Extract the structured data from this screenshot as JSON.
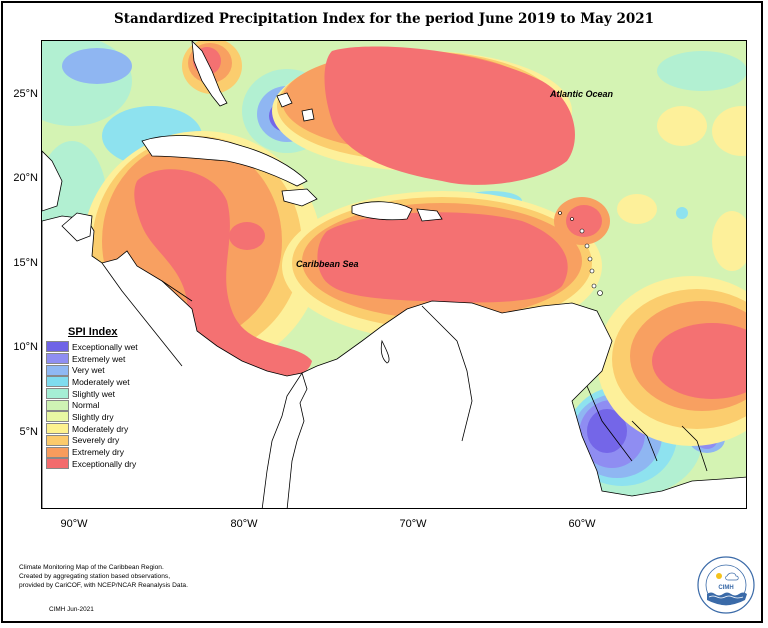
{
  "title": "Standardized Precipitation Index for the period June 2019 to May 2021",
  "map": {
    "lat_labels": [
      "25°N",
      "20°N",
      "15°N",
      "10°N",
      "5°N"
    ],
    "lon_labels": [
      "90°W",
      "80°W",
      "70°W",
      "60°W"
    ],
    "ocean_labels": {
      "atlantic": "Atlantic Ocean",
      "caribbean": "Caribbean Sea"
    },
    "colors": {
      "exceptionally_dry": "#f47172",
      "extremely_dry": "#f8a061",
      "severely_dry": "#fbcd6e",
      "moderately_dry": "#fdf09a",
      "slightly_dry": "#e8f8a5",
      "normal": "#d4f3b3",
      "slightly_wet": "#b2f0d2",
      "moderately_wet": "#8ee2ef",
      "very_wet": "#8fb6f2",
      "extremely_wet": "#8f8df2",
      "exceptionally_wet": "#7466e8",
      "land": "#ffffff"
    }
  },
  "legend": {
    "title": "SPI Index",
    "items": [
      {
        "label": "Exceptionally wet",
        "color": "#6f63e6"
      },
      {
        "label": "Extremely wet",
        "color": "#8f8ef2"
      },
      {
        "label": "Very wet",
        "color": "#8fb8f3"
      },
      {
        "label": "Moderately wet",
        "color": "#7fdcef"
      },
      {
        "label": "Slightly wet",
        "color": "#a5eed5"
      },
      {
        "label": "Normal",
        "color": "#cff3b4"
      },
      {
        "label": "Slightly dry",
        "color": "#e9f8a3"
      },
      {
        "label": "Moderately dry",
        "color": "#fdf28f"
      },
      {
        "label": "Severely dry",
        "color": "#fcca6b"
      },
      {
        "label": "Extremely dry",
        "color": "#f89c5d"
      },
      {
        "label": "Exceptionally dry",
        "color": "#f36b6d"
      }
    ]
  },
  "footnote": {
    "line1": "Climate Monitoring Map of the Caribbean Region.",
    "line2": "Created by aggregating station based observations,",
    "line3": "provided by CariCOF, with NCEP/NCAR Reanalysis Data."
  },
  "credit": "CIMH Jun-2021",
  "logo": {
    "name": "CIMH"
  }
}
